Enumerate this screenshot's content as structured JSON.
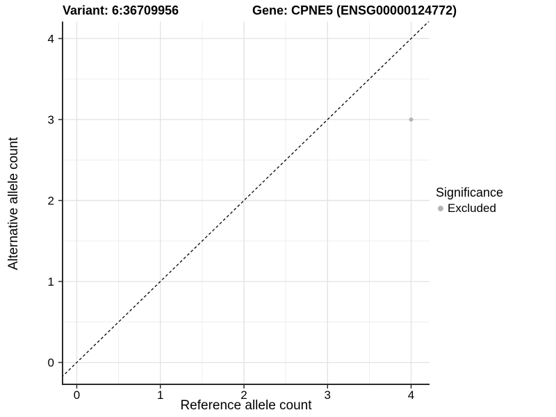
{
  "chart_data": {
    "type": "scatter",
    "titles": {
      "left": "Variant: 6:36709956",
      "right": "Gene: CPNE5 (ENSG00000124772)"
    },
    "xlabel": "Reference allele count",
    "ylabel": "Alternative allele count",
    "x_ticks": [
      0,
      1,
      2,
      3,
      4
    ],
    "y_ticks": [
      0,
      1,
      2,
      3,
      4
    ],
    "xlim": [
      -0.17,
      4.22
    ],
    "ylim": [
      -0.27,
      4.21
    ],
    "grid": {
      "major": true,
      "minor": true
    },
    "points": [
      {
        "x": 4,
        "y": 3,
        "significance": "Excluded"
      }
    ],
    "diagonal_line": {
      "slope": 1,
      "intercept": 0,
      "linetype": "dashed"
    },
    "legend": {
      "title": "Significance",
      "position": "right",
      "entries": [
        {
          "label": "Excluded",
          "color": "#b5b5b5",
          "marker": "circle"
        }
      ]
    },
    "colors": {
      "point": "#b5b5b5",
      "grid_major": "#e3e3e3",
      "grid_minor": "#eeeeee",
      "axis": "#2b2b2b",
      "diagonal": "#000000",
      "background": "#ffffff",
      "text": "#000000"
    }
  }
}
